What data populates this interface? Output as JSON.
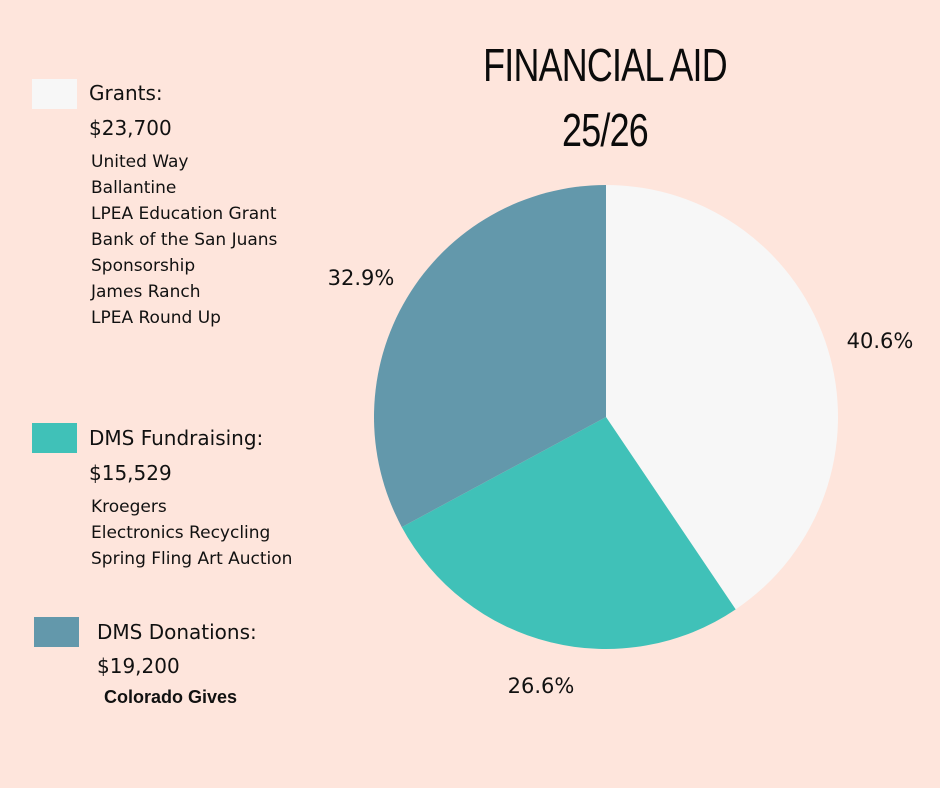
{
  "chart_data": {
    "type": "pie",
    "title": "FINANCIAL AID",
    "subtitle": "25/26",
    "slices": [
      {
        "name": "Grants",
        "label": "Grants:",
        "amount": "$23,700",
        "value": 23700,
        "percent": 40.6,
        "percent_label": "40.6%",
        "color": "#F7F7F7",
        "sources": [
          "United Way",
          "Ballantine",
          "LPEA Education Grant",
          "Bank of the San Juans",
          "Sponsorship",
          "James Ranch",
          "LPEA Round Up"
        ]
      },
      {
        "name": "DMS Fundraising",
        "label": "DMS Fundraising:",
        "amount": "$15,529",
        "value": 15529,
        "percent": 26.6,
        "percent_label": "26.6%",
        "color": "#40C1B8",
        "sources": [
          "Kroegers",
          "Electronics Recycling",
          "Spring Fling Art Auction"
        ]
      },
      {
        "name": "DMS Donations",
        "label": "DMS Donations:",
        "amount": "$19,200",
        "value": 19200,
        "percent": 32.9,
        "percent_label": "32.9%",
        "color": "#6398AB",
        "sources": [
          "Colorado Gives"
        ]
      }
    ],
    "start_angle_deg": 0,
    "direction": "clockwise",
    "legend_position": "left"
  },
  "page": {
    "background": "#FEE5DC",
    "title_line1": "FINANCIAL AID",
    "title_line2": "25/26"
  }
}
